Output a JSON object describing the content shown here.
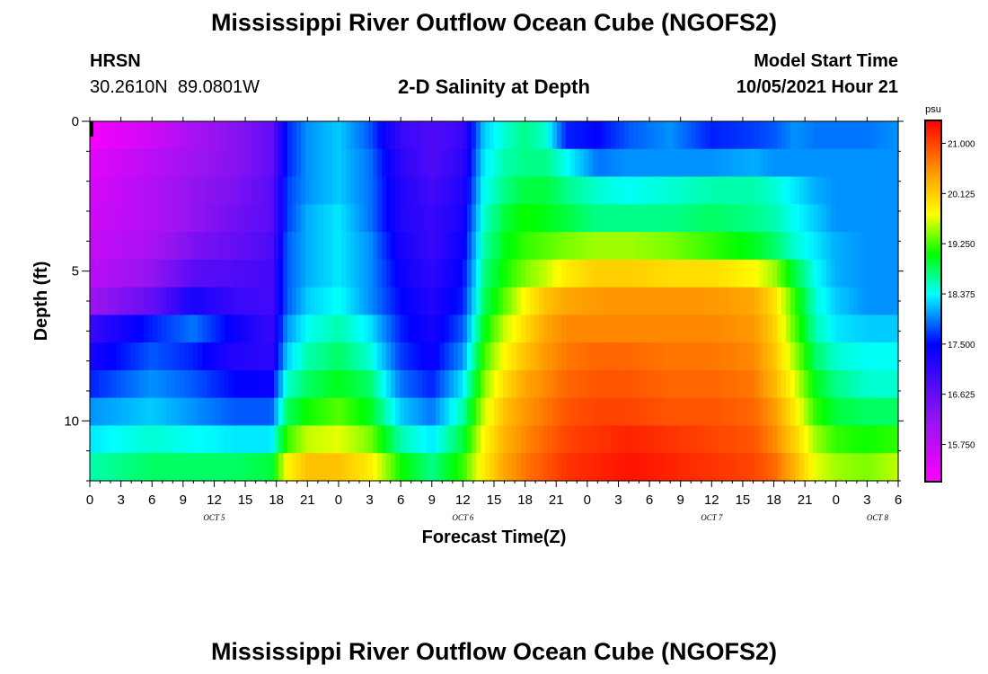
{
  "header": {
    "title": "Mississippi River Outflow Ocean Cube (NGOFS2)",
    "station_name": "HRSN",
    "station_coords": "30.2610N  89.0801W",
    "product": "2-D Salinity at Depth",
    "model_start_label": "Model Start Time",
    "model_start_value": "10/05/2021 Hour 21"
  },
  "footer": {
    "title": "Mississippi River Outflow Ocean Cube (NGOFS2)"
  },
  "chart_data": {
    "type": "heatmap",
    "title": "2-D Salinity at Depth",
    "xlabel": "Forecast Time(Z)",
    "ylabel": "Depth (ft)",
    "x_unit": "hours since 2021-10-05 00Z",
    "xlim": [
      0,
      78
    ],
    "ylim": [
      0,
      12
    ],
    "y_inverted": true,
    "x_ticks": [
      0,
      3,
      6,
      9,
      12,
      15,
      18,
      21,
      24,
      27,
      30,
      33,
      36,
      39,
      42,
      45,
      48,
      51,
      54,
      57,
      60,
      63,
      66,
      69,
      72,
      75,
      78
    ],
    "x_tick_labels": [
      "0",
      "3",
      "6",
      "9",
      "12",
      "15",
      "18",
      "21",
      "0",
      "3",
      "6",
      "9",
      "12",
      "15",
      "18",
      "21",
      "0",
      "3",
      "6",
      "9",
      "12",
      "15",
      "18",
      "21",
      "0",
      "3",
      "6"
    ],
    "day_labels": [
      {
        "text": "OCT 5",
        "x": 12
      },
      {
        "text": "OCT 6",
        "x": 36
      },
      {
        "text": "OCT 7",
        "x": 60
      },
      {
        "text": "OCT 8",
        "x": 76
      }
    ],
    "y_ticks": [
      0,
      5,
      10
    ],
    "y_tick_labels": [
      "0",
      "5",
      "10"
    ],
    "colorbar": {
      "unit": "psu",
      "min": 15.1,
      "max": 21.4,
      "ticks": [
        15.75,
        16.625,
        17.5,
        18.375,
        19.25,
        20.125,
        21.0
      ],
      "tick_labels": [
        "15.750",
        "16.625",
        "17.500",
        "18.375",
        "19.250",
        "20.125",
        "21.000"
      ]
    },
    "x_hours": [
      0,
      6,
      10,
      14,
      17.5,
      19,
      21,
      24,
      27,
      30,
      33,
      36,
      38,
      40,
      42,
      44,
      46,
      49,
      52,
      56,
      60,
      64,
      66,
      68,
      70,
      72,
      75,
      78
    ],
    "depth_levels": [
      0,
      1,
      2,
      3,
      4,
      5,
      6,
      7,
      8,
      9,
      10,
      11,
      12
    ],
    "salinity_psu": [
      [
        15.2,
        15.6,
        16.0,
        16.3,
        16.6,
        17.6,
        18.0,
        18.2,
        17.8,
        17.0,
        16.8,
        17.0,
        18.2,
        18.5,
        18.7,
        18.5,
        17.6,
        17.5,
        17.8,
        18.0,
        17.6,
        17.7,
        17.8,
        18.0,
        17.9,
        17.9,
        17.9,
        18.0
      ],
      [
        15.4,
        15.8,
        16.1,
        16.3,
        16.6,
        17.6,
        18.0,
        18.2,
        17.9,
        17.1,
        16.8,
        17.1,
        18.3,
        18.6,
        18.7,
        18.7,
        18.4,
        17.9,
        18.0,
        18.0,
        18.0,
        18.1,
        18.0,
        18.0,
        18.0,
        18.0,
        18.0,
        18.0
      ],
      [
        15.5,
        15.9,
        16.2,
        16.4,
        16.7,
        17.7,
        18.0,
        18.2,
        17.9,
        17.2,
        16.9,
        17.2,
        18.4,
        18.7,
        18.9,
        18.9,
        18.7,
        18.5,
        18.4,
        18.5,
        18.6,
        18.6,
        18.5,
        18.3,
        18.1,
        18.0,
        18.0,
        18.0
      ],
      [
        15.6,
        15.9,
        16.2,
        16.5,
        16.7,
        17.7,
        18.1,
        18.3,
        17.9,
        17.2,
        17.0,
        17.3,
        18.5,
        18.9,
        19.1,
        19.0,
        18.9,
        18.7,
        18.7,
        18.7,
        18.8,
        18.7,
        18.6,
        18.4,
        18.2,
        18.0,
        18.0,
        18.0
      ],
      [
        15.7,
        16.0,
        16.4,
        16.6,
        16.8,
        17.8,
        18.1,
        18.3,
        18.0,
        17.3,
        17.0,
        17.4,
        18.6,
        19.0,
        19.2,
        19.3,
        19.4,
        19.5,
        19.5,
        19.4,
        19.2,
        19.0,
        18.8,
        18.5,
        18.3,
        18.1,
        18.0,
        18.0
      ],
      [
        15.8,
        16.2,
        16.7,
        16.8,
        16.9,
        17.8,
        18.1,
        18.3,
        18.0,
        17.4,
        17.1,
        17.5,
        18.7,
        19.1,
        19.4,
        19.6,
        19.9,
        20.1,
        20.1,
        20.0,
        20.0,
        19.8,
        19.5,
        18.9,
        18.4,
        18.1,
        18.0,
        18.0
      ],
      [
        16.1,
        16.6,
        17.3,
        17.0,
        16.9,
        17.8,
        18.2,
        18.4,
        18.0,
        17.5,
        17.2,
        17.6,
        18.8,
        19.3,
        19.8,
        20.2,
        20.4,
        20.5,
        20.5,
        20.5,
        20.5,
        20.4,
        20.0,
        19.2,
        18.5,
        18.2,
        18.0,
        18.0
      ],
      [
        17.0,
        17.6,
        17.9,
        17.4,
        17.0,
        18.0,
        18.4,
        18.6,
        18.3,
        17.6,
        17.3,
        17.8,
        19.0,
        19.6,
        20.0,
        20.4,
        20.6,
        20.6,
        20.6,
        20.6,
        20.6,
        20.5,
        20.1,
        19.3,
        18.6,
        18.3,
        18.2,
        18.2
      ],
      [
        17.3,
        17.8,
        17.6,
        17.2,
        17.1,
        18.2,
        18.6,
        18.8,
        18.5,
        17.7,
        17.4,
        18.0,
        19.2,
        19.8,
        20.2,
        20.5,
        20.7,
        20.8,
        20.8,
        20.7,
        20.7,
        20.6,
        20.2,
        19.5,
        18.8,
        18.5,
        18.4,
        18.4
      ],
      [
        17.6,
        18.0,
        17.8,
        17.5,
        17.4,
        18.5,
        18.8,
        19.0,
        18.8,
        17.9,
        17.6,
        18.3,
        19.4,
        20.0,
        20.4,
        20.6,
        20.8,
        20.9,
        20.9,
        20.8,
        20.8,
        20.7,
        20.3,
        19.7,
        19.0,
        18.7,
        18.5,
        18.5
      ],
      [
        18.0,
        18.2,
        18.0,
        17.8,
        17.8,
        18.8,
        19.1,
        19.3,
        19.0,
        18.2,
        17.9,
        18.6,
        19.6,
        20.2,
        20.5,
        20.7,
        20.9,
        21.0,
        21.0,
        20.9,
        20.9,
        20.8,
        20.5,
        19.9,
        19.2,
        18.9,
        18.8,
        18.8
      ],
      [
        18.3,
        18.5,
        18.4,
        18.3,
        18.3,
        19.2,
        19.6,
        19.7,
        19.4,
        18.6,
        18.3,
        18.9,
        19.8,
        20.3,
        20.6,
        20.8,
        21.0,
        21.1,
        21.2,
        21.1,
        21.0,
        20.9,
        20.6,
        20.1,
        19.5,
        19.2,
        19.1,
        19.2
      ],
      [
        18.6,
        18.8,
        18.8,
        18.8,
        18.9,
        19.8,
        20.2,
        20.2,
        19.9,
        19.1,
        18.7,
        19.2,
        19.9,
        20.4,
        20.7,
        20.9,
        21.1,
        21.2,
        21.3,
        21.2,
        21.1,
        21.0,
        20.8,
        20.3,
        19.7,
        19.5,
        19.4,
        19.6
      ]
    ]
  }
}
